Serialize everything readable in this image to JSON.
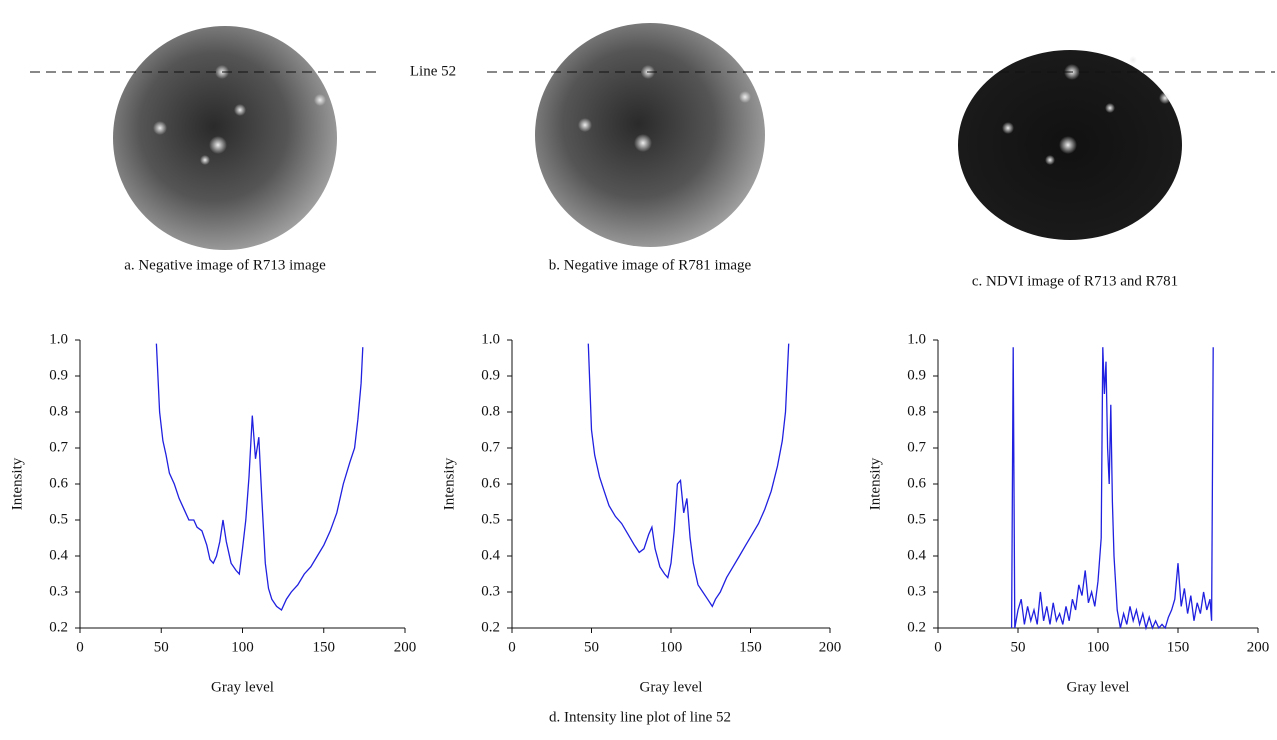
{
  "line_label": "Line 52",
  "images": [
    {
      "caption": "a. Negative image of R713 image"
    },
    {
      "caption": "b. Negative image of R781 image"
    },
    {
      "caption": "c. NDVI image of R713 and R781"
    }
  ],
  "caption": "d. Intensity line plot of line 52",
  "chart_data": [
    {
      "type": "line",
      "xlabel": "Gray level",
      "ylabel": "Intensity",
      "color": "#2020e0",
      "xlim": [
        0,
        200
      ],
      "ylim": [
        0.2,
        1
      ],
      "xticks": [
        0,
        50,
        100,
        150,
        200
      ],
      "yticks": [
        0.2,
        0.3,
        0.4,
        0.5,
        0.6,
        0.7,
        0.8,
        0.9,
        {
          "value": 1,
          "label": "1.0"
        }
      ],
      "x": [
        47,
        49,
        51,
        53,
        55,
        58,
        61,
        64,
        67,
        70,
        72,
        75,
        78,
        80,
        82,
        84,
        86,
        88,
        90,
        93,
        96,
        98,
        100,
        102,
        104,
        106,
        108,
        110,
        112,
        114,
        116,
        118,
        121,
        124,
        127,
        130,
        134,
        138,
        142,
        146,
        150,
        154,
        158,
        162,
        166,
        169,
        171,
        173,
        174
      ],
      "values": [
        0.99,
        0.8,
        0.72,
        0.68,
        0.63,
        0.6,
        0.56,
        0.53,
        0.5,
        0.5,
        0.48,
        0.47,
        0.43,
        0.39,
        0.38,
        0.4,
        0.44,
        0.5,
        0.44,
        0.38,
        0.36,
        0.35,
        0.42,
        0.5,
        0.62,
        0.79,
        0.67,
        0.73,
        0.55,
        0.38,
        0.31,
        0.28,
        0.26,
        0.25,
        0.28,
        0.3,
        0.32,
        0.35,
        0.37,
        0.4,
        0.43,
        0.47,
        0.52,
        0.6,
        0.66,
        0.7,
        0.78,
        0.88,
        0.98
      ]
    },
    {
      "type": "line",
      "xlabel": "Gray level",
      "ylabel": "Intensity",
      "color": "#2020e0",
      "xlim": [
        0,
        200
      ],
      "ylim": [
        0.2,
        1
      ],
      "xticks": [
        0,
        50,
        100,
        150,
        200
      ],
      "yticks": [
        0.2,
        0.3,
        0.4,
        0.5,
        0.6,
        0.7,
        0.8,
        0.9,
        {
          "value": 1,
          "label": "1.0"
        }
      ],
      "x": [
        48,
        50,
        52,
        55,
        58,
        61,
        65,
        69,
        73,
        77,
        80,
        83,
        86,
        88,
        90,
        93,
        96,
        98,
        100,
        102,
        104,
        106,
        108,
        110,
        112,
        114,
        117,
        120,
        123,
        126,
        128,
        131,
        135,
        139,
        143,
        147,
        151,
        155,
        159,
        163,
        167,
        170,
        172,
        174
      ],
      "values": [
        0.99,
        0.75,
        0.68,
        0.62,
        0.58,
        0.54,
        0.51,
        0.49,
        0.46,
        0.43,
        0.41,
        0.42,
        0.46,
        0.48,
        0.42,
        0.37,
        0.35,
        0.34,
        0.38,
        0.47,
        0.6,
        0.61,
        0.52,
        0.56,
        0.45,
        0.38,
        0.32,
        0.3,
        0.28,
        0.26,
        0.28,
        0.3,
        0.34,
        0.37,
        0.4,
        0.43,
        0.46,
        0.49,
        0.53,
        0.58,
        0.65,
        0.72,
        0.8,
        0.99
      ]
    },
    {
      "type": "line",
      "xlabel": "Gray level",
      "ylabel": "Intensity",
      "color": "#2020e0",
      "xlim": [
        0,
        200
      ],
      "ylim": [
        0.2,
        1
      ],
      "xticks": [
        0,
        50,
        100,
        150,
        200
      ],
      "yticks": [
        0.2,
        0.3,
        0.4,
        0.5,
        0.6,
        0.7,
        0.8,
        0.9,
        {
          "value": 1,
          "label": "1.0"
        }
      ],
      "x": [
        46,
        47,
        48,
        50,
        52,
        54,
        56,
        58,
        60,
        62,
        64,
        66,
        68,
        70,
        72,
        74,
        76,
        78,
        80,
        82,
        84,
        86,
        88,
        90,
        92,
        94,
        96,
        98,
        100,
        102,
        103,
        104,
        105,
        106,
        107,
        108,
        109,
        110,
        112,
        114,
        116,
        118,
        120,
        122,
        124,
        126,
        128,
        130,
        132,
        134,
        136,
        138,
        140,
        142,
        144,
        146,
        148,
        150,
        152,
        154,
        156,
        158,
        160,
        162,
        164,
        166,
        168,
        170,
        171,
        172
      ],
      "values": [
        0.2,
        0.98,
        0.2,
        0.25,
        0.28,
        0.21,
        0.26,
        0.22,
        0.25,
        0.21,
        0.3,
        0.22,
        0.26,
        0.21,
        0.27,
        0.22,
        0.24,
        0.21,
        0.26,
        0.22,
        0.28,
        0.25,
        0.32,
        0.29,
        0.36,
        0.27,
        0.3,
        0.26,
        0.33,
        0.45,
        0.98,
        0.85,
        0.94,
        0.7,
        0.6,
        0.82,
        0.55,
        0.4,
        0.25,
        0.2,
        0.24,
        0.21,
        0.26,
        0.22,
        0.25,
        0.21,
        0.24,
        0.2,
        0.23,
        0.2,
        0.22,
        0.2,
        0.21,
        0.2,
        0.23,
        0.25,
        0.28,
        0.38,
        0.26,
        0.31,
        0.24,
        0.29,
        0.22,
        0.27,
        0.24,
        0.3,
        0.25,
        0.28,
        0.22,
        0.98
      ]
    }
  ]
}
